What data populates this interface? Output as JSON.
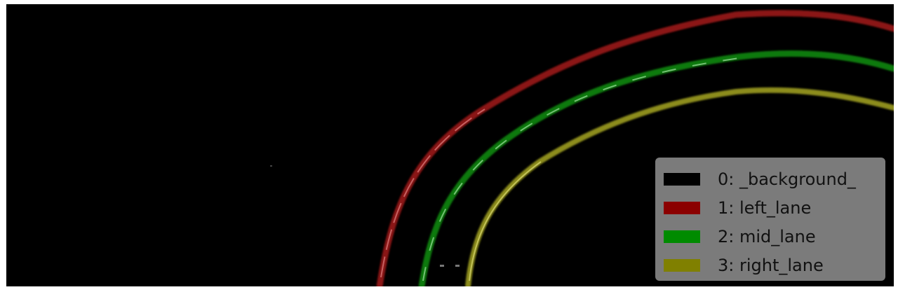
{
  "segmentation_view": {
    "classes": [
      {
        "label": "0: _background_",
        "color": "#000000"
      },
      {
        "label": "1: left_lane",
        "color": "#8b0000"
      },
      {
        "label": "2: mid_lane",
        "color": "#008b00"
      },
      {
        "label": "3: right_lane",
        "color": "#808000"
      }
    ]
  }
}
